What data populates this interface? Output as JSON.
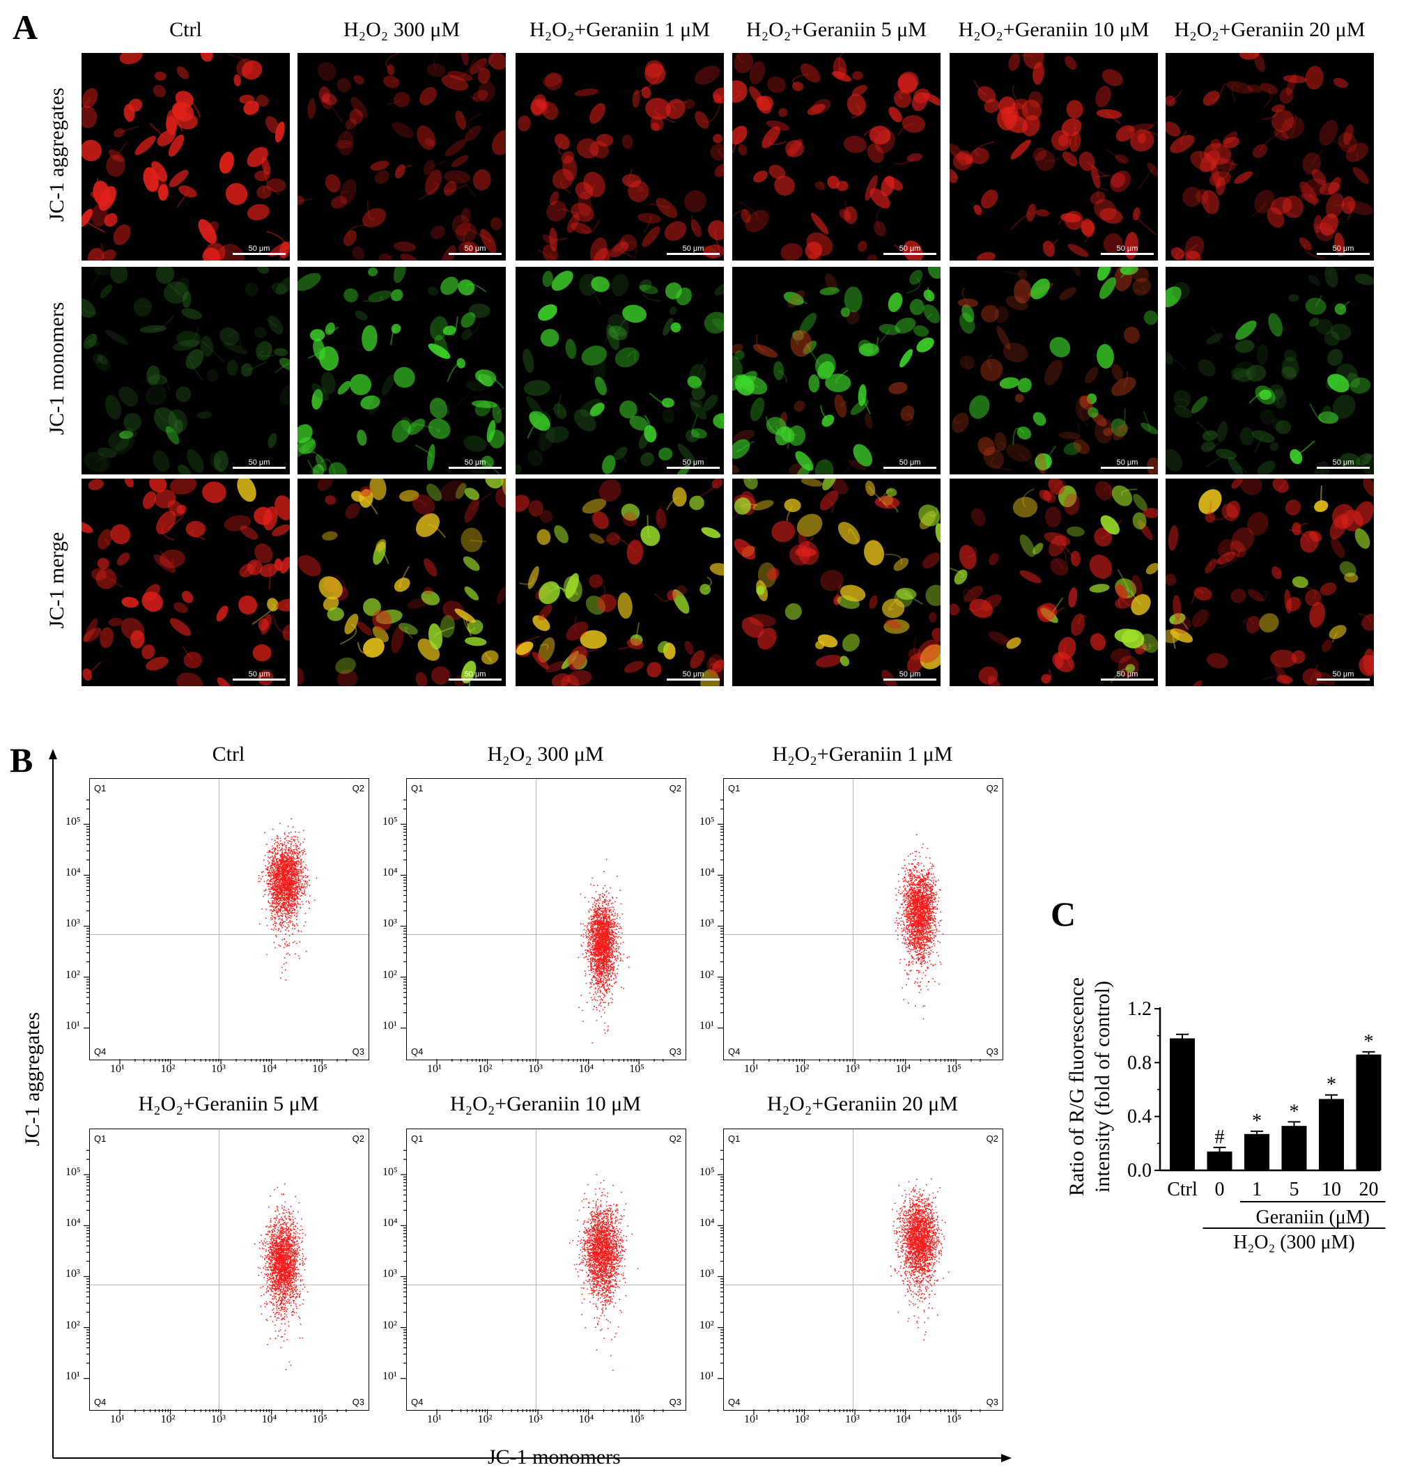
{
  "panels": {
    "a": {
      "letter": "A",
      "column_titles": [
        "Ctrl",
        "H₂O₂ 300 μM",
        "H₂O₂+Geraniin 1 μM",
        "H₂O₂+Geraniin 5 μM",
        "H₂O₂+Geraniin 10 μM",
        "H₂O₂+Geraniin 20 μM"
      ],
      "row_labels": [
        "JC-1 aggregates",
        "JC-1 monomers",
        "JC-1 merge"
      ],
      "scale_bar": "50 μm"
    },
    "b": {
      "letter": "B",
      "plot_titles": [
        "Ctrl",
        "H₂O₂ 300 μM",
        "H₂O₂+Geraniin 1 μM",
        "H₂O₂+Geraniin 5 μM",
        "H₂O₂+Geraniin 10 μM",
        "H₂O₂+Geraniin 20 μM"
      ],
      "quadrants": [
        "Q1",
        "Q2",
        "Q3",
        "Q4"
      ],
      "tick_labels": [
        "10¹",
        "10²",
        "10³",
        "10⁴",
        "10⁵"
      ],
      "xlabel": "JC-1 monomers",
      "ylabel": "JC-1 aggregates"
    },
    "c": {
      "letter": "C"
    }
  },
  "chart_data": {
    "type": "bar",
    "categories": [
      "Ctrl",
      "0",
      "1",
      "5",
      "10",
      "20"
    ],
    "values": [
      0.98,
      0.14,
      0.27,
      0.33,
      0.53,
      0.86
    ],
    "errors": [
      0.03,
      0.03,
      0.02,
      0.03,
      0.03,
      0.02
    ],
    "markers": [
      "",
      "#",
      "*",
      "*",
      "*",
      "*"
    ],
    "ylabel_line1": "Ratio of R/G fluorescence",
    "ylabel_line2": "intensity (fold of control)",
    "yticks": [
      "0.0",
      "0.4",
      "0.8",
      "1.2"
    ],
    "ylim": [
      0,
      1.2
    ],
    "group_label_1": "Geraniin (μM)",
    "group_label_2": "H₂O₂ (300 μM)",
    "color": "#000000"
  },
  "colors": {
    "aggregate_red": "#e0201a",
    "monomer_green": "#3ed62a",
    "merge_yellow": "#e8c21a",
    "scatter_red": "#ff1a1a"
  }
}
